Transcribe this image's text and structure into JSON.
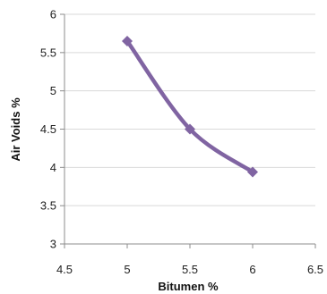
{
  "chart_data": {
    "type": "line",
    "title": "",
    "xlabel": "Bitumen %",
    "ylabel": "Air Voids %",
    "xlim": [
      4.5,
      6.5
    ],
    "ylim": [
      3,
      6
    ],
    "x_ticks": [
      "4.5",
      "5",
      "5.5",
      "6",
      "6.5"
    ],
    "y_ticks": [
      "3",
      "3.5",
      "4",
      "4.5",
      "5",
      "5.5",
      "6"
    ],
    "grid": "horizontal",
    "legend": "none",
    "smooth": true,
    "series": [
      {
        "x": [
          5,
          5.5,
          6
        ],
        "values": [
          5.65,
          4.5,
          3.94
        ],
        "color": "#8064a2",
        "marker": "diamond"
      }
    ]
  }
}
